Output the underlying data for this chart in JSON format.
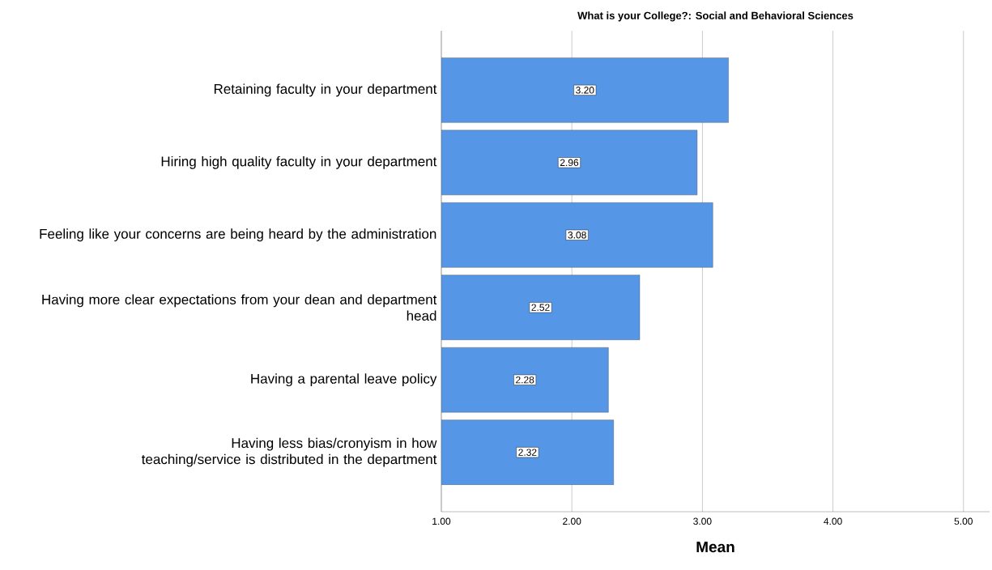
{
  "chart_data": {
    "type": "bar",
    "orientation": "horizontal",
    "title": "What is your College?: Social and Behavioral Sciences",
    "xlabel": "Mean",
    "categories": [
      "Retaining faculty in your department",
      "Hiring high quality faculty in your department",
      "Feeling like your concerns are being heard by the administration",
      "Having more clear expectations from your dean and department head",
      "Having a parental leave policy",
      "Having less bias/cronyism in how teaching/service is distributed in the department"
    ],
    "values": [
      3.2,
      2.96,
      3.08,
      2.52,
      2.28,
      2.32
    ],
    "value_labels": [
      "3.20",
      "2.96",
      "3.08",
      "2.52",
      "2.28",
      "2.32"
    ],
    "color": "#5596e6",
    "xlim": [
      1,
      5.2
    ],
    "xticks": [
      {
        "value": 1,
        "label": "1.00"
      },
      {
        "value": 2,
        "label": "2.00"
      },
      {
        "value": 3,
        "label": "3.00"
      },
      {
        "value": 4,
        "label": "4.00"
      },
      {
        "value": 5,
        "label": "5.00"
      }
    ],
    "grid": "x"
  }
}
